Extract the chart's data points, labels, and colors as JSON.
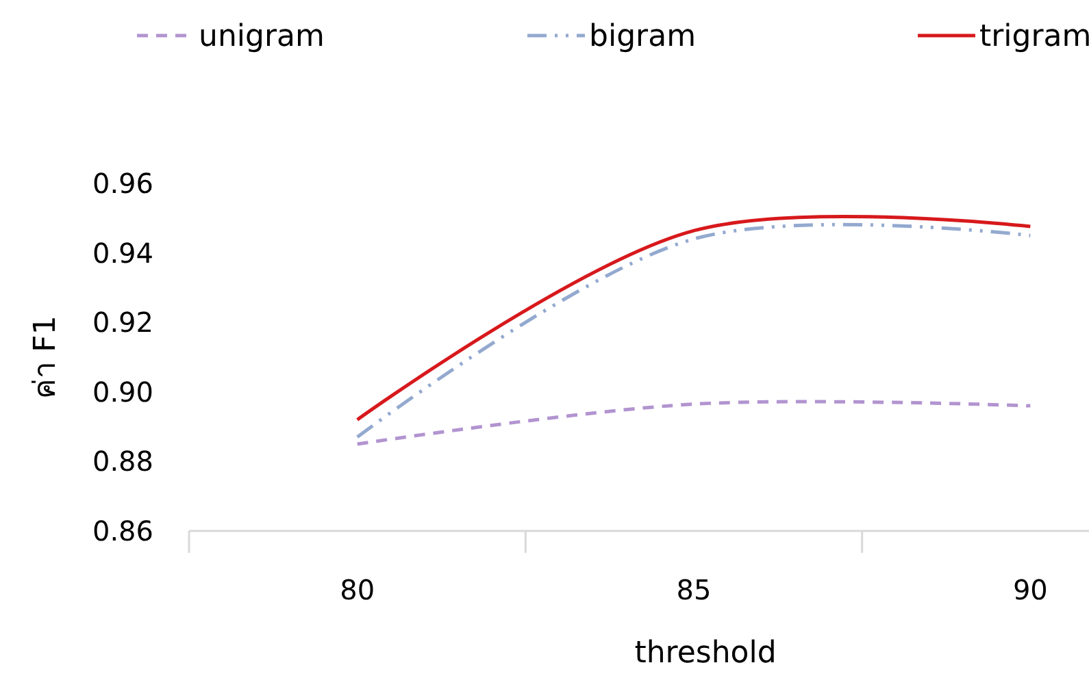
{
  "chart_data": {
    "type": "line",
    "xlabel": "threshold",
    "ylabel": "ค่า F1",
    "categories": [
      "80",
      "85",
      "90"
    ],
    "series": [
      {
        "name": "unigram",
        "color": "#b294d0",
        "line_style": "dashed",
        "values": [
          0.885,
          0.8965,
          0.896
        ]
      },
      {
        "name": "bigram",
        "color": "#93a9cf",
        "line_style": "dashdot",
        "values": [
          0.887,
          0.944,
          0.945
        ]
      },
      {
        "name": "trigram",
        "color": "#d7191c",
        "line_style": "solid",
        "values": [
          0.892,
          0.9464,
          0.9476
        ]
      }
    ],
    "ylim": [
      0.86,
      0.96
    ],
    "yticks": [
      0.86,
      0.88,
      {
        "value": 0.9,
        "label": "0.90"
      },
      0.92,
      0.94,
      0.96
    ],
    "grid": false,
    "legend": "top",
    "marker": "none"
  }
}
